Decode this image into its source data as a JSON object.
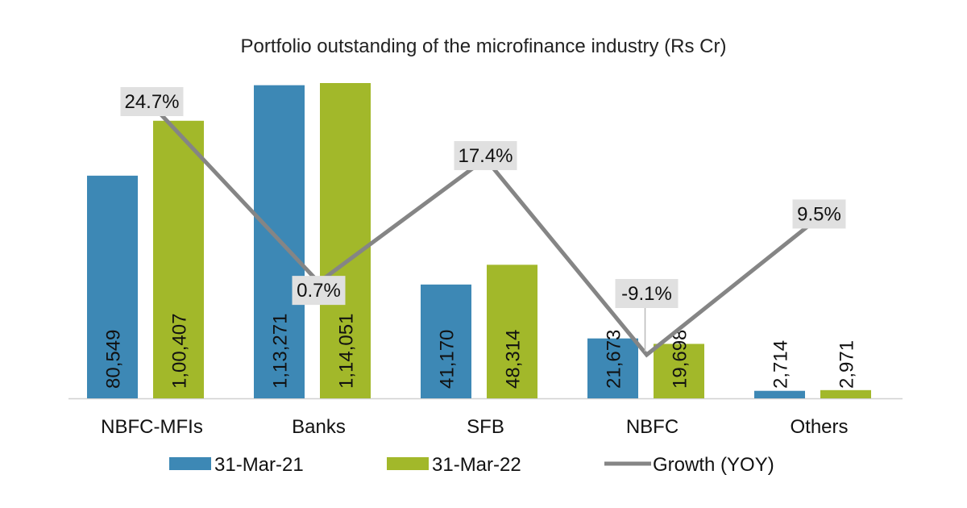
{
  "title": "Portfolio outstanding of the microfinance industry (Rs Cr)",
  "colors": {
    "series1": "#3d88b5",
    "series2": "#a2b82a",
    "growth": "#858585",
    "label_box": "#e0e0e0",
    "axis": "#d0d0d0"
  },
  "chart_data": {
    "type": "bar",
    "title": "Portfolio outstanding of the microfinance industry (Rs Cr)",
    "categories": [
      "NBFC-MFIs",
      "Banks",
      "SFB",
      "NBFC",
      "Others"
    ],
    "ylim": [
      0,
      122000
    ],
    "grid": false,
    "legend_position": "bottom",
    "series": [
      {
        "name": "31-Mar-21",
        "values": [
          80549,
          113271,
          41170,
          21673,
          2714
        ],
        "labels": [
          "80,549",
          "1,13,271",
          "41,170",
          "21,673",
          "2,714"
        ]
      },
      {
        "name": "31-Mar-22",
        "values": [
          100407,
          114051,
          48314,
          19698,
          2971
        ],
        "labels": [
          "1,00,407",
          "1,14,051",
          "48,314",
          "19,698",
          "2,971"
        ]
      }
    ],
    "line_series": {
      "name": "Growth (YOY)",
      "values": [
        24.7,
        0.7,
        17.4,
        -9.1,
        9.5
      ],
      "labels": [
        "24.7%",
        "0.7%",
        "17.4%",
        "-9.1%",
        "9.5%"
      ]
    }
  }
}
